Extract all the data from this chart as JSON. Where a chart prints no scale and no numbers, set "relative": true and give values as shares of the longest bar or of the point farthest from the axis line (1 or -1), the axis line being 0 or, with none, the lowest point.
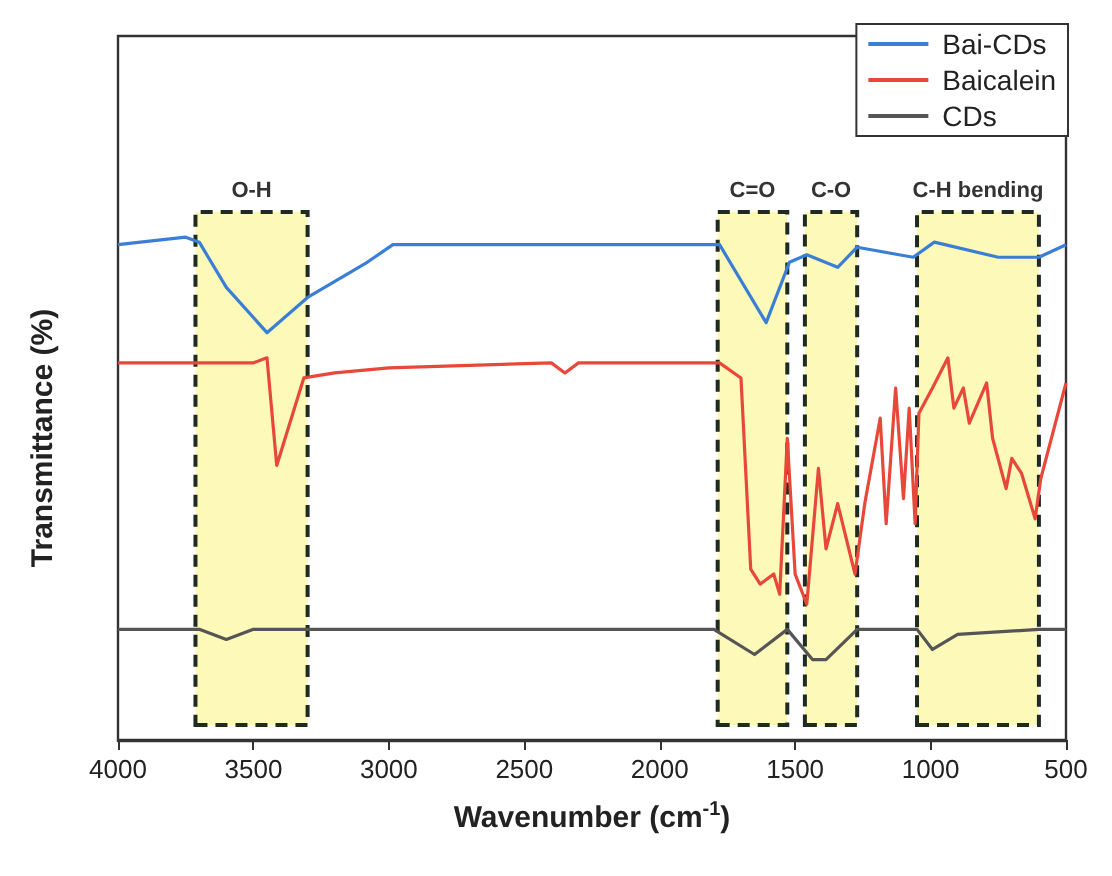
{
  "chart_data": {
    "type": "line",
    "relative": true,
    "xlabel": "Wavenumber (cm$^{-1}$)",
    "ylabel": "Transmittance (%)",
    "xlim": [
      4000,
      500
    ],
    "xticks": [
      4000,
      3500,
      3000,
      2500,
      2000,
      1500,
      1000,
      500
    ],
    "grid": false,
    "legend": "top right",
    "marker": "none",
    "line_style": "solid",
    "series": [
      {
        "name": "Bai-CDs",
        "color": "#3a7fd5",
        "x": [
          4000,
          3750,
          3700,
          3600,
          3450,
          3300,
          3080,
          2985,
          2500,
          2000,
          1779,
          1607,
          1521,
          1457,
          1343,
          1271,
          1064,
          986,
          750,
          600,
          500
        ],
        "values": [
          0.985,
          1.0,
          0.99,
          0.9,
          0.81,
          0.88,
          0.95,
          0.985,
          0.985,
          0.985,
          0.985,
          0.83,
          0.95,
          0.965,
          0.94,
          0.98,
          0.96,
          0.99,
          0.96,
          0.96,
          0.985
        ]
      },
      {
        "name": "Baicalein",
        "color": "#e8483a",
        "x": [
          4000,
          3500,
          3450,
          3414,
          3314,
          3200,
          3000,
          2400,
          2350,
          2300,
          1779,
          1700,
          1664,
          1629,
          1579,
          1557,
          1529,
          1500,
          1457,
          1414,
          1386,
          1343,
          1279,
          1243,
          1186,
          1164,
          1129,
          1100,
          1079,
          1057,
          1043,
          993,
          936,
          914,
          879,
          857,
          793,
          771,
          721,
          700,
          664,
          614,
          593,
          500
        ],
        "values": [
          0.75,
          0.75,
          0.76,
          0.546,
          0.72,
          0.73,
          0.74,
          0.75,
          0.73,
          0.75,
          0.75,
          0.72,
          0.34,
          0.31,
          0.33,
          0.29,
          0.6,
          0.33,
          0.27,
          0.54,
          0.38,
          0.47,
          0.33,
          0.47,
          0.64,
          0.43,
          0.7,
          0.48,
          0.66,
          0.43,
          0.65,
          0.7,
          0.76,
          0.66,
          0.7,
          0.63,
          0.71,
          0.6,
          0.5,
          0.56,
          0.53,
          0.44,
          0.52,
          0.71
        ]
      },
      {
        "name": "CDs",
        "color": "#555555",
        "x": [
          4000,
          3700,
          3600,
          3500,
          3300,
          1800,
          1650,
          1529,
          1436,
          1386,
          1271,
          1050,
          993,
          900,
          600,
          500
        ],
        "values": [
          0.22,
          0.22,
          0.2,
          0.22,
          0.22,
          0.22,
          0.17,
          0.22,
          0.16,
          0.16,
          0.22,
          0.22,
          0.18,
          0.21,
          0.22,
          0.22
        ]
      }
    ],
    "bands": [
      {
        "axis": "x",
        "from": 3714,
        "to": 3300,
        "label": "O-H",
        "color": "#fdf9b8"
      },
      {
        "axis": "x",
        "from": 1786,
        "to": 1529,
        "label": "C=O",
        "color": "#fdf9b8"
      },
      {
        "axis": "x",
        "from": 1464,
        "to": 1271,
        "label": "C-O",
        "color": "#fdf9b8"
      },
      {
        "axis": "x",
        "from": 1050,
        "to": 600,
        "label": "C-H bending",
        "color": "#fdf9b8"
      }
    ]
  }
}
